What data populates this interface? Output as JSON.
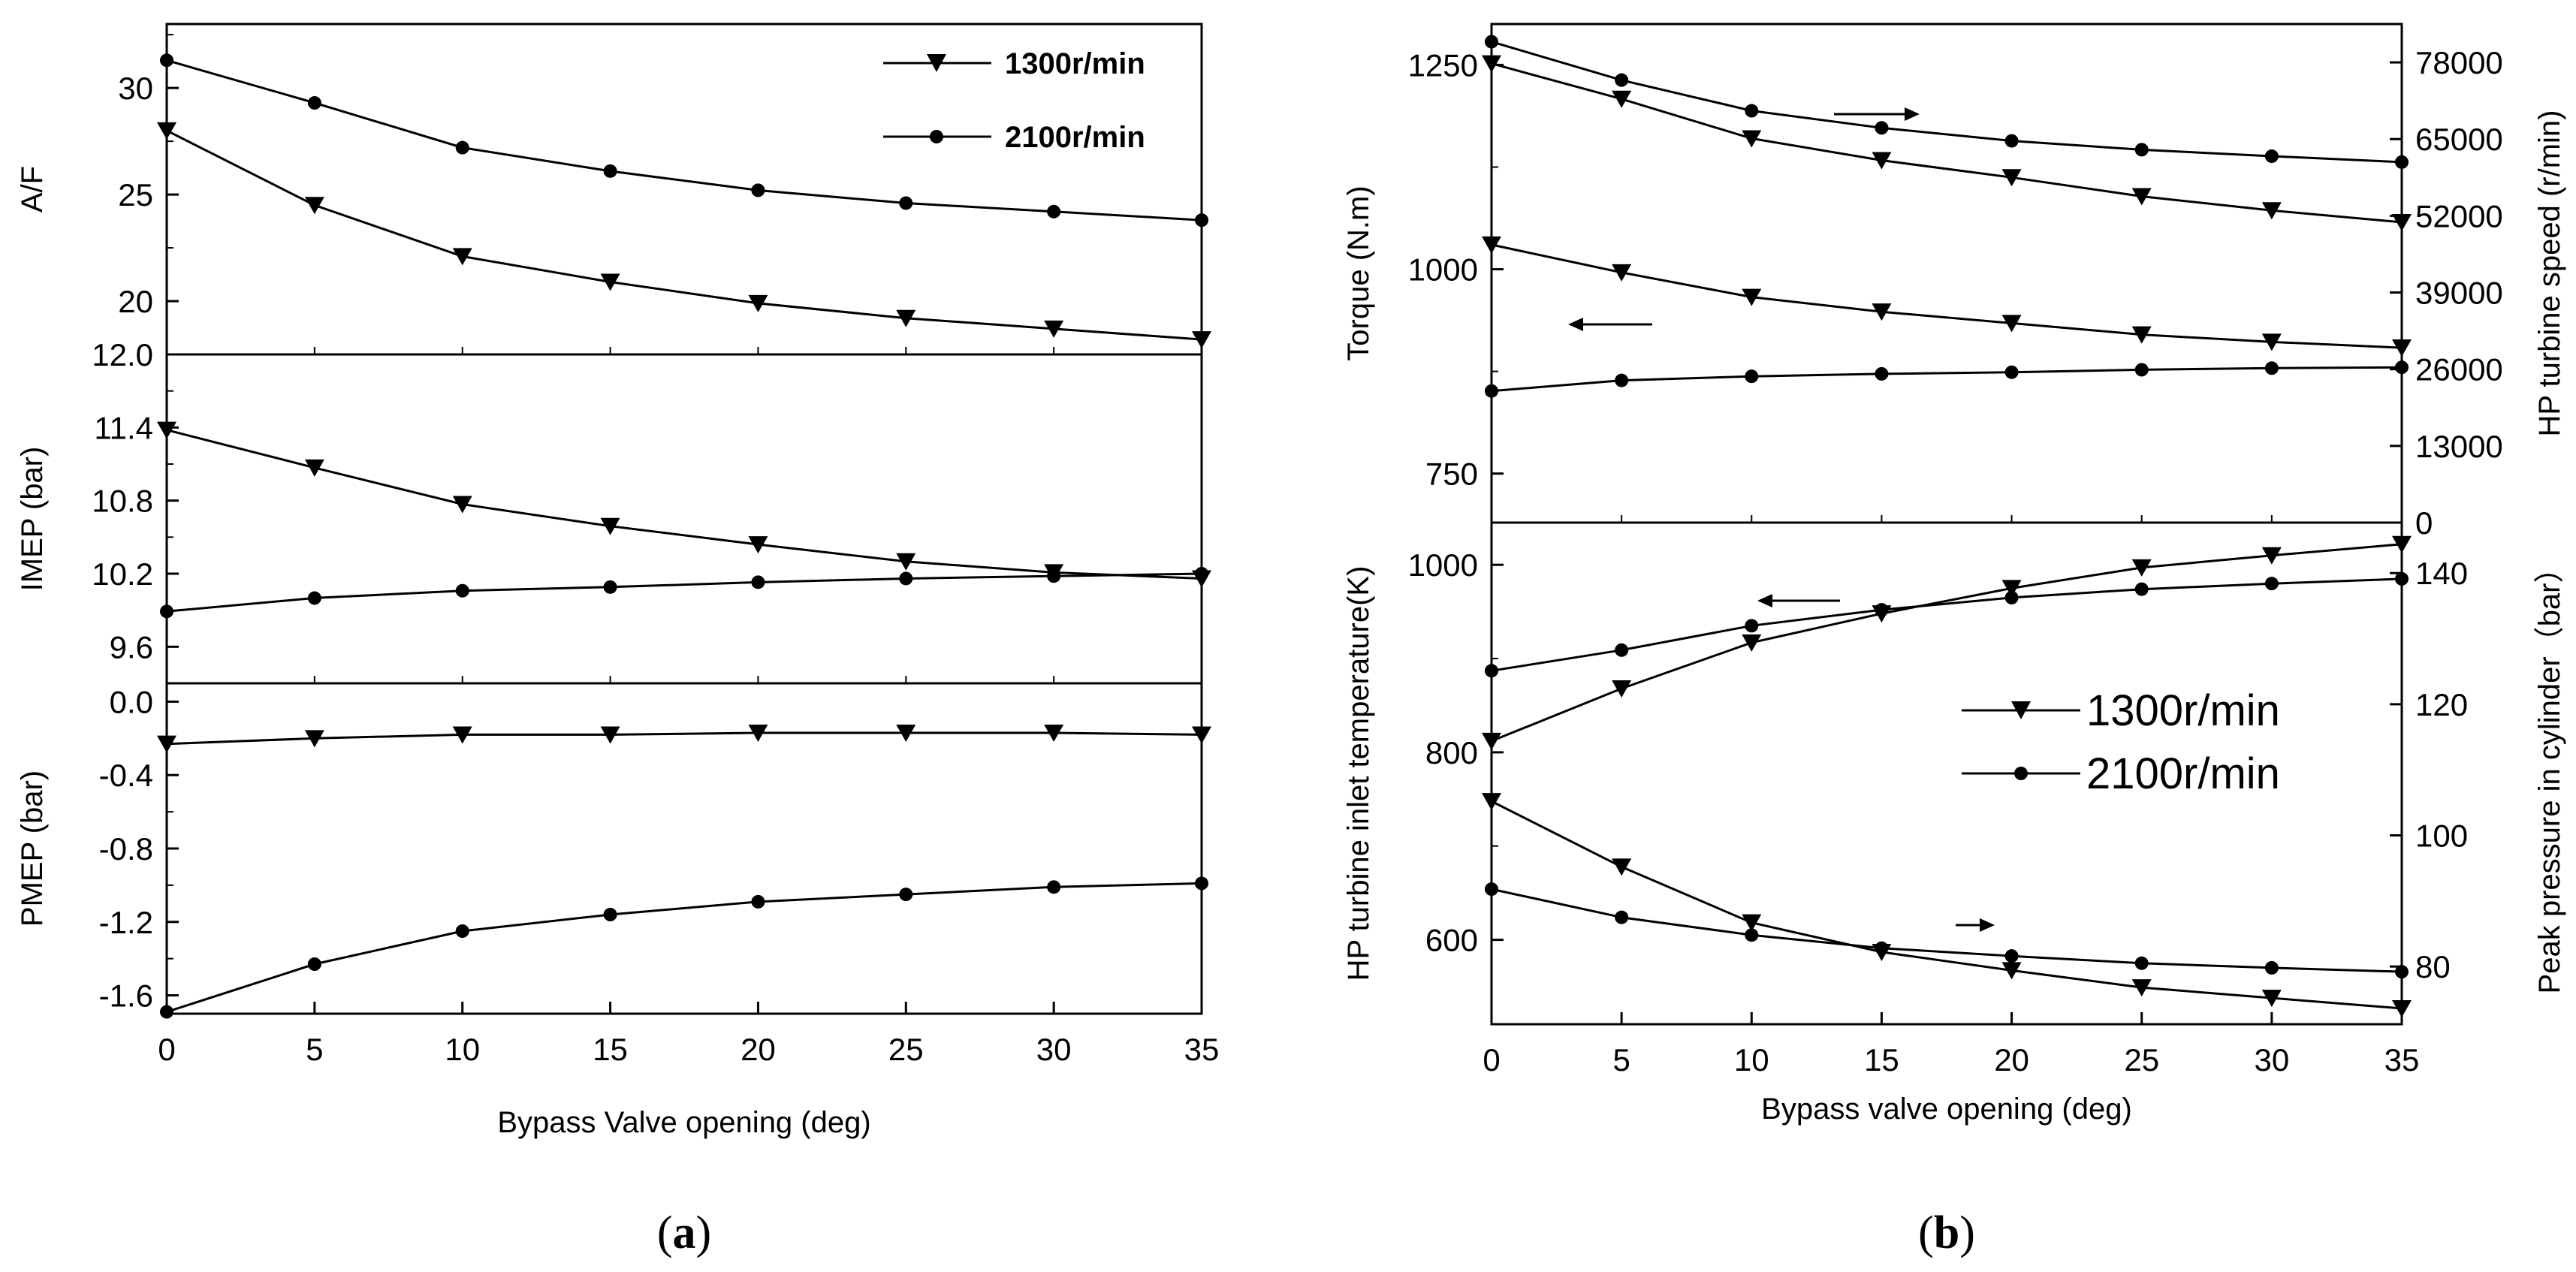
{
  "chart_data": [
    {
      "type": "line",
      "panel": "a-top",
      "ylabel": "A/F",
      "ylim": [
        17.5,
        33
      ],
      "yticks": [
        20,
        25,
        30
      ],
      "x": [
        0,
        5,
        10,
        15,
        20,
        25,
        30,
        35
      ],
      "series": [
        {
          "name": "1300r/min",
          "marker": "triangle-down",
          "values": [
            28.0,
            24.5,
            22.1,
            20.9,
            19.9,
            19.2,
            18.7,
            18.2
          ]
        },
        {
          "name": "2100r/min",
          "marker": "circle",
          "values": [
            31.3,
            29.3,
            27.2,
            26.1,
            25.2,
            24.6,
            24.2,
            23.8
          ]
        }
      ],
      "legend": {
        "position": "top-right",
        "entries": [
          "1300r/min",
          "2100r/min"
        ]
      }
    },
    {
      "type": "line",
      "panel": "a-mid",
      "ylabel": "IMEP (bar)",
      "ylim": [
        9.3,
        12.0
      ],
      "yticks": [
        "12.0",
        "11.4",
        "10.8",
        "10.2",
        "9.6"
      ],
      "x": [
        0,
        5,
        10,
        15,
        20,
        25,
        30,
        35
      ],
      "series": [
        {
          "name": "1300r/min",
          "marker": "triangle-down",
          "values": [
            11.38,
            11.07,
            10.77,
            10.59,
            10.44,
            10.3,
            10.21,
            10.16
          ]
        },
        {
          "name": "2100r/min",
          "marker": "circle",
          "values": [
            9.89,
            10.0,
            10.06,
            10.09,
            10.13,
            10.16,
            10.18,
            10.2
          ]
        }
      ]
    },
    {
      "type": "line",
      "panel": "a-bot",
      "ylabel": "PMEP (bar)",
      "xlabel": "Bypass Valve opening (deg)",
      "ylim": [
        -1.7,
        0.1
      ],
      "yticks": [
        "0.0",
        "-0.4",
        "-0.8",
        "-1.2",
        "-1.6"
      ],
      "xticks": [
        "0",
        "5",
        "10",
        "15",
        "20",
        "25",
        "30",
        "35"
      ],
      "x": [
        0,
        5,
        10,
        15,
        20,
        25,
        30,
        35
      ],
      "series": [
        {
          "name": "1300r/min",
          "marker": "triangle-down",
          "values": [
            -0.23,
            -0.2,
            -0.18,
            -0.18,
            -0.17,
            -0.17,
            -0.17,
            -0.18
          ]
        },
        {
          "name": "2100r/min",
          "marker": "circle",
          "values": [
            -1.69,
            -1.43,
            -1.25,
            -1.16,
            -1.09,
            -1.05,
            -1.01,
            -0.99
          ]
        }
      ]
    },
    {
      "type": "line",
      "panel": "b-top",
      "ylabel": "Torque (N.m)",
      "ylabel_right": "HP turbine speed (r/min)",
      "ylim": [
        690,
        1300
      ],
      "ylim_right": [
        0,
        84500
      ],
      "yticks": [
        "750",
        "1000",
        "1250"
      ],
      "yticks_right": [
        "0",
        "13000",
        "26000",
        "39000",
        "52000",
        "65000",
        "78000"
      ],
      "x": [
        0,
        5,
        10,
        15,
        20,
        25,
        30,
        35
      ],
      "series": [
        {
          "name": "1300r/min torque",
          "marker": "triangle-down",
          "axis": "left",
          "values": [
            1030,
            996,
            966,
            948,
            934,
            920,
            911,
            904
          ]
        },
        {
          "name": "2100r/min torque",
          "marker": "circle",
          "axis": "left",
          "values": [
            851,
            864,
            869,
            872,
            874,
            877,
            879,
            880
          ]
        },
        {
          "name": "1300r/min speed",
          "marker": "triangle-down",
          "axis": "right",
          "values": [
            77800,
            71800,
            65100,
            61400,
            58500,
            55300,
            52900,
            50900
          ]
        },
        {
          "name": "2100r/min speed",
          "marker": "circle",
          "axis": "right",
          "values": [
            81500,
            75000,
            69800,
            66900,
            64700,
            63200,
            62100,
            61100
          ]
        }
      ]
    },
    {
      "type": "line",
      "panel": "b-bot",
      "ylabel": "HP turbine inlet temperature(K)",
      "ylabel_right": "Peak pressure in cylinder（bar）",
      "xlabel": "Bypass valve opening (deg)",
      "ylim": [
        510,
        1045
      ],
      "ylim_right": [
        71.2,
        147.7
      ],
      "yticks": [
        "600",
        "800",
        "1000"
      ],
      "yticks_right": [
        "80",
        "100",
        "120",
        "140"
      ],
      "xticks": [
        "0",
        "5",
        "10",
        "15",
        "20",
        "25",
        "30",
        "35"
      ],
      "x": [
        0,
        5,
        10,
        15,
        20,
        25,
        30,
        35
      ],
      "series": [
        {
          "name": "1300r/min temperature",
          "marker": "triangle-down",
          "axis": "left",
          "values": [
            812,
            868,
            917,
            948,
            975,
            997,
            1010,
            1022
          ]
        },
        {
          "name": "2100r/min temperature",
          "marker": "circle",
          "axis": "left",
          "values": [
            887,
            909,
            935,
            952,
            965,
            974,
            980,
            985
          ]
        },
        {
          "name": "1300r/min peak pressure",
          "marker": "triangle-down",
          "axis": "right",
          "values": [
            105.2,
            95.2,
            86.7,
            82.2,
            79.4,
            76.8,
            75.2,
            73.6
          ]
        },
        {
          "name": "2100r/min peak pressure",
          "marker": "circle",
          "axis": "right",
          "values": [
            91.8,
            87.5,
            84.8,
            82.8,
            81.6,
            80.5,
            79.8,
            79.2
          ]
        }
      ],
      "legend": {
        "position": "center-right",
        "entries": [
          "1300r/min",
          "2100r/min"
        ]
      }
    }
  ],
  "captions": {
    "a": {
      "open": "(",
      "letter": "a",
      "close": ")"
    },
    "b": {
      "open": "(",
      "letter": "b",
      "close": ")"
    }
  }
}
